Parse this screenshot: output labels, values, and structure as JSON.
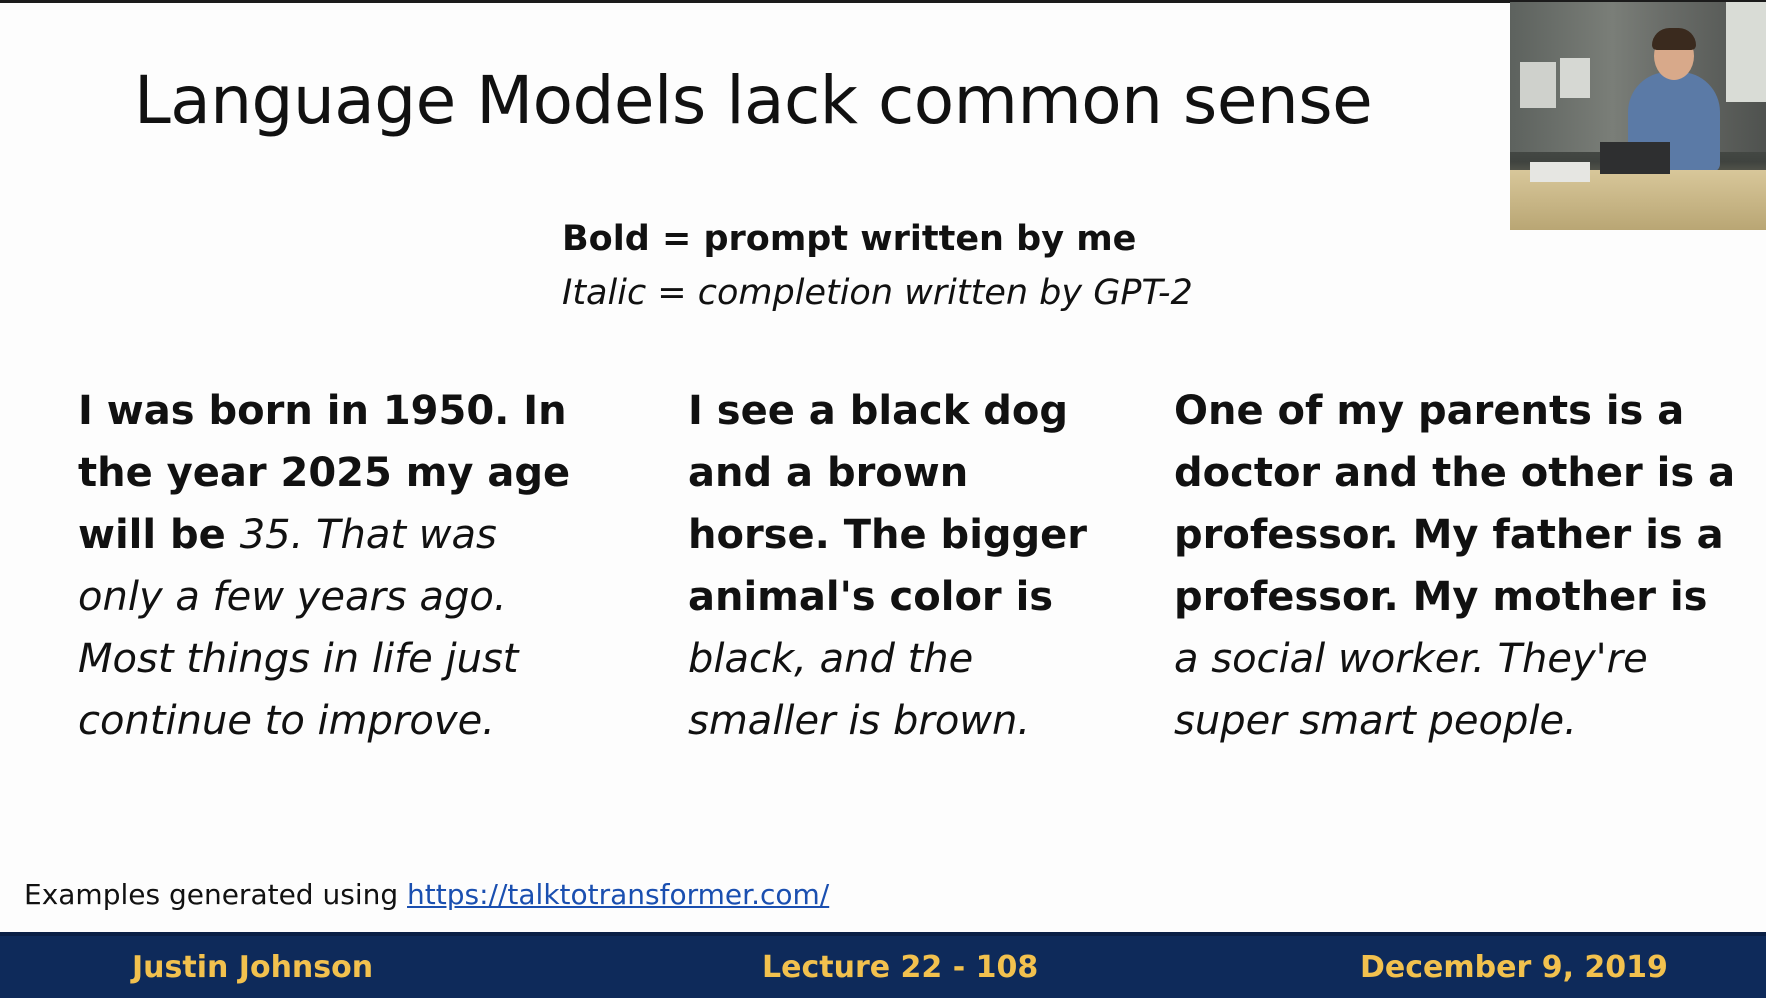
{
  "slide": {
    "title": "Language Models lack common sense",
    "legend": {
      "bold_line": "Bold = prompt written by me",
      "italic_line": "Italic = completion written by GPT-2"
    },
    "examples": [
      {
        "lines": [
          [
            {
              "text": "I was born in 1950. In",
              "style": "bold"
            }
          ],
          [
            {
              "text": "the year 2025 my age",
              "style": "bold"
            }
          ],
          [
            {
              "text": "will be ",
              "style": "bold"
            },
            {
              "text": "35. That was",
              "style": "italic"
            }
          ],
          [
            {
              "text": "only a few years ago.",
              "style": "italic"
            }
          ],
          [
            {
              "text": "Most things in life just",
              "style": "italic"
            }
          ],
          [
            {
              "text": "continue to improve.",
              "style": "italic"
            }
          ]
        ]
      },
      {
        "lines": [
          [
            {
              "text": "I see a black dog",
              "style": "bold"
            }
          ],
          [
            {
              "text": "and a brown",
              "style": "bold"
            }
          ],
          [
            {
              "text": "horse. The bigger",
              "style": "bold"
            }
          ],
          [
            {
              "text": "animal's color is",
              "style": "bold"
            }
          ],
          [
            {
              "text": "black, and the",
              "style": "italic"
            }
          ],
          [
            {
              "text": "smaller is brown.",
              "style": "italic"
            }
          ]
        ]
      },
      {
        "lines": [
          [
            {
              "text": "One of my parents is a",
              "style": "bold"
            }
          ],
          [
            {
              "text": "doctor and the other is a",
              "style": "bold"
            }
          ],
          [
            {
              "text": "professor. My father is a",
              "style": "bold"
            }
          ],
          [
            {
              "text": "professor. My mother is",
              "style": "bold"
            }
          ],
          [
            {
              "text": "a social worker. They're",
              "style": "italic"
            }
          ],
          [
            {
              "text": "super smart people.",
              "style": "italic"
            }
          ]
        ]
      }
    ],
    "footnote": {
      "prefix": "Examples generated using ",
      "link_text": "https://talktotransformer.com/"
    }
  },
  "footer": {
    "author": "Justin Johnson",
    "lecture": "Lecture 22 - 108",
    "date": "December 9, 2019"
  },
  "colors": {
    "footer_bg": "#0e2a5a",
    "footer_text": "#f2c14e",
    "link": "#1a4fb0"
  }
}
